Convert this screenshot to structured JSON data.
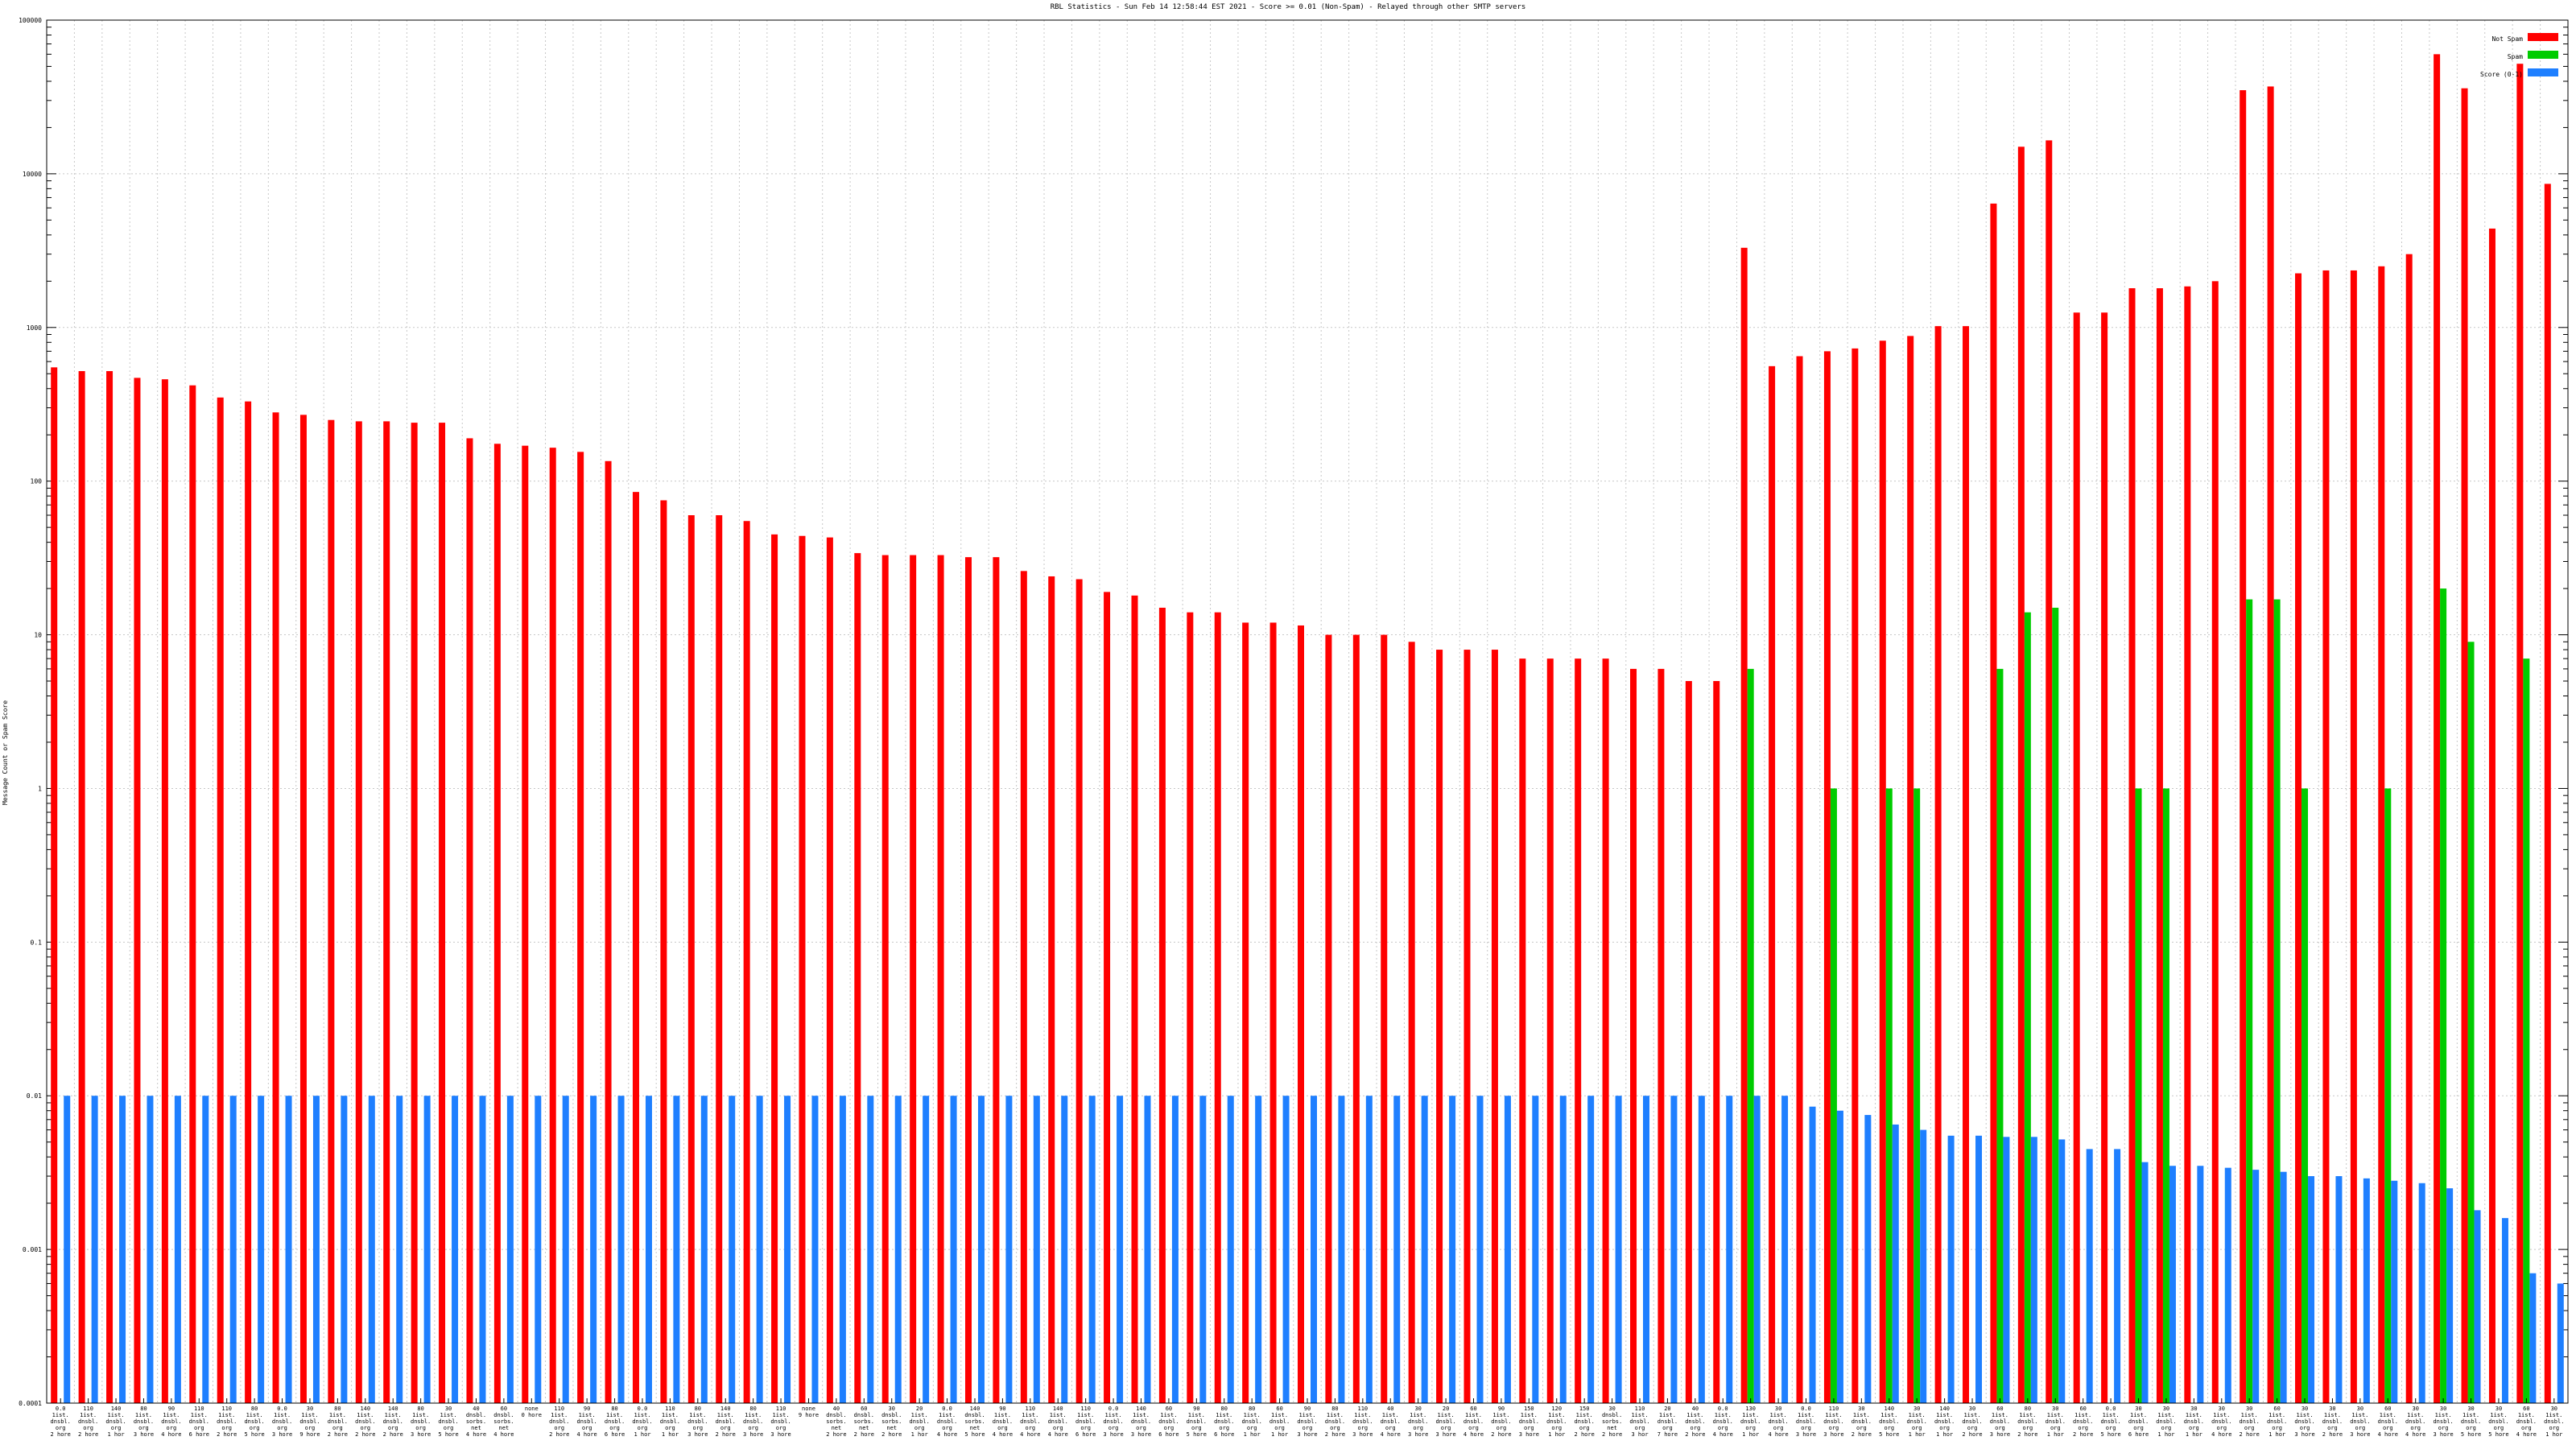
{
  "chart_data": {
    "type": "bar",
    "title": "RBL Statistics - Sun Feb 14 12:58:44 EST 2021 - Score >= 0.01 (Non-Spam) - Relayed through other SMTP servers",
    "ylabel": "Message Count or Spam Score",
    "xlabel": "",
    "yscale": "log",
    "ylim": [
      0.0001,
      100000
    ],
    "yticks": [
      "0.0001",
      "0.001",
      "0.01",
      "0.1",
      "1",
      "10",
      "100",
      "1000",
      "10000",
      "100000"
    ],
    "legend_position": "top-right",
    "grid": true,
    "series": [
      {
        "name": "Not Spam",
        "color": "#ff0000",
        "values": [
          550,
          520,
          520,
          470,
          460,
          420,
          350,
          330,
          280,
          270,
          250,
          245,
          245,
          240,
          240,
          190,
          175,
          170,
          165,
          155,
          135,
          85,
          75,
          60,
          60,
          55,
          45,
          44,
          43,
          34,
          33,
          33,
          33,
          32,
          32,
          26,
          24,
          23,
          19,
          18,
          15,
          14,
          14,
          12,
          12,
          11.5,
          10,
          10,
          10,
          9,
          8,
          8,
          8,
          7,
          7,
          7,
          7,
          6,
          6,
          5,
          5,
          3300,
          560,
          650,
          700,
          730,
          820,
          880,
          1020,
          1020,
          6400,
          15000,
          16500,
          1250,
          1250,
          1800,
          1800,
          1850,
          2000,
          35000,
          37000,
          2250,
          2350,
          2350,
          2500,
          3000,
          60000,
          36000,
          4400,
          52000,
          8600
        ]
      },
      {
        "name": "Spam",
        "color": "#00cc00",
        "values": [
          0,
          0,
          0,
          0,
          0,
          0,
          0,
          0,
          0,
          0,
          0,
          0,
          0,
          0,
          0,
          0,
          0,
          0,
          0,
          0,
          0,
          0,
          0,
          0,
          0,
          0,
          0,
          0,
          0,
          0,
          0,
          0,
          0,
          0,
          0,
          0,
          0,
          0,
          0,
          0,
          0,
          0,
          0,
          0,
          0,
          0,
          0,
          0,
          0,
          0,
          0,
          0,
          0,
          0,
          0,
          0,
          0,
          0,
          0,
          0,
          0,
          6,
          0,
          0,
          1,
          0,
          1,
          1,
          0,
          0,
          6,
          14,
          15,
          0,
          0,
          1,
          1,
          0,
          0,
          17,
          17,
          1,
          0,
          0,
          1,
          0,
          20,
          9,
          0,
          7,
          0
        ]
      },
      {
        "name": "Score (0-1)",
        "color": "#1e7fff",
        "values": [
          0.01,
          0.01,
          0.01,
          0.01,
          0.01,
          0.01,
          0.01,
          0.01,
          0.01,
          0.01,
          0.01,
          0.01,
          0.01,
          0.01,
          0.01,
          0.01,
          0.01,
          0.01,
          0.01,
          0.01,
          0.01,
          0.01,
          0.01,
          0.01,
          0.01,
          0.01,
          0.01,
          0.01,
          0.01,
          0.01,
          0.01,
          0.01,
          0.01,
          0.01,
          0.01,
          0.01,
          0.01,
          0.01,
          0.01,
          0.01,
          0.01,
          0.01,
          0.01,
          0.01,
          0.01,
          0.01,
          0.01,
          0.01,
          0.01,
          0.01,
          0.01,
          0.01,
          0.01,
          0.01,
          0.01,
          0.01,
          0.01,
          0.01,
          0.01,
          0.01,
          0.01,
          0.01,
          0.01,
          0.0085,
          0.008,
          0.0075,
          0.0065,
          0.006,
          0.0055,
          0.0055,
          0.0054,
          0.0054,
          0.0052,
          0.0045,
          0.0045,
          0.0037,
          0.0035,
          0.0035,
          0.0034,
          0.0033,
          0.0032,
          0.003,
          0.003,
          0.0029,
          0.0028,
          0.0027,
          0.0025,
          0.0018,
          0.0016,
          0.0007,
          0.0006
        ]
      }
    ],
    "categories": [
      {
        "lines": [
          "0.0",
          "1ist.",
          "dnsbl.",
          "org",
          "2 hore"
        ]
      },
      {
        "lines": [
          "110",
          "1ist.",
          "dnsbl.",
          "org",
          "2 hore"
        ]
      },
      {
        "lines": [
          "140",
          "1ist.",
          "dnsbl.",
          "org",
          "1 hor"
        ]
      },
      {
        "lines": [
          "80",
          "1ist.",
          "dnsbl.",
          "org",
          "3 hore"
        ]
      },
      {
        "lines": [
          "90",
          "1ist.",
          "dnsbl.",
          "org",
          "4 hore"
        ]
      },
      {
        "lines": [
          "110",
          "1ist.",
          "dnsbl.",
          "org",
          "6 hore"
        ]
      },
      {
        "lines": [
          "110",
          "1ist.",
          "dnsbl.",
          "org",
          "2 hore"
        ]
      },
      {
        "lines": [
          "80",
          "1ist.",
          "dnsbl.",
          "org",
          "5 hore"
        ]
      },
      {
        "lines": [
          "0.0",
          "1ist.",
          "dnsbl.",
          "org",
          "3 hore"
        ]
      },
      {
        "lines": [
          "30",
          "1ist.",
          "dnsbl.",
          "org",
          "9 hore"
        ]
      },
      {
        "lines": [
          "80",
          "1ist.",
          "dnsbl.",
          "org",
          "2 hore"
        ]
      },
      {
        "lines": [
          "140",
          "1ist.",
          "dnsbl.",
          "org",
          "2 hore"
        ]
      },
      {
        "lines": [
          "140",
          "1ist.",
          "dnsbl.",
          "org",
          "2 hore"
        ]
      },
      {
        "lines": [
          "80",
          "1ist.",
          "dnsbl.",
          "org",
          "3 hore"
        ]
      },
      {
        "lines": [
          "30",
          "1ist.",
          "dnsbl.",
          "org",
          "5 hore"
        ]
      },
      {
        "lines": [
          "40",
          "dnsbl.",
          "sorbs.",
          "net",
          "4 hore"
        ]
      },
      {
        "lines": [
          "60",
          "dnsbl.",
          "sorbs.",
          "net",
          "4 hore"
        ]
      },
      {
        "lines": [
          "none",
          "0 hore"
        ]
      },
      {
        "lines": [
          "110",
          "1ist.",
          "dnsbl.",
          "org",
          "2 hore"
        ]
      },
      {
        "lines": [
          "90",
          "1ist.",
          "dnsbl.",
          "org",
          "4 hore"
        ]
      },
      {
        "lines": [
          "80",
          "1ist.",
          "dnsbl.",
          "org",
          "6 hore"
        ]
      },
      {
        "lines": [
          "0.0",
          "1ist.",
          "dnsbl.",
          "org",
          "1 hor"
        ]
      },
      {
        "lines": [
          "110",
          "1ist.",
          "dnsbl.",
          "org",
          "1 hor"
        ]
      },
      {
        "lines": [
          "80",
          "1ist.",
          "dnsbl.",
          "org",
          "3 hore"
        ]
      },
      {
        "lines": [
          "140",
          "1ist.",
          "dnsbl.",
          "org",
          "2 hore"
        ]
      },
      {
        "lines": [
          "80",
          "1ist.",
          "dnsbl.",
          "org",
          "3 hore"
        ]
      },
      {
        "lines": [
          "110",
          "1ist.",
          "dnsbl.",
          "org",
          "3 hore"
        ]
      },
      {
        "lines": [
          "none",
          "9 hore"
        ]
      },
      {
        "lines": [
          "40",
          "dnsbl.",
          "sorbs.",
          "net",
          "2 hore"
        ]
      },
      {
        "lines": [
          "60",
          "dnsbl.",
          "sorbs.",
          "net",
          "2 hore"
        ]
      },
      {
        "lines": [
          "30",
          "dnsbl.",
          "sorbs.",
          "net",
          "2 hore"
        ]
      },
      {
        "lines": [
          "20",
          "1ist.",
          "dnsbl.",
          "org",
          "1 hor"
        ]
      },
      {
        "lines": [
          "0.0",
          "1ist.",
          "dnsbl.",
          "org",
          "4 hore"
        ]
      },
      {
        "lines": [
          "140",
          "dnsbl.",
          "sorbs.",
          "net",
          "5 hore"
        ]
      },
      {
        "lines": [
          "90",
          "1ist.",
          "dnsbl.",
          "org",
          "4 hore"
        ]
      },
      {
        "lines": [
          "110",
          "1ist.",
          "dnsbl.",
          "org",
          "4 hore"
        ]
      },
      {
        "lines": [
          "140",
          "1ist.",
          "dnsbl.",
          "org",
          "4 hore"
        ]
      },
      {
        "lines": [
          "110",
          "1ist.",
          "dnsbl.",
          "org",
          "6 hore"
        ]
      },
      {
        "lines": [
          "0.0",
          "1ist.",
          "dnsbl.",
          "org",
          "3 hore"
        ]
      },
      {
        "lines": [
          "140",
          "1ist.",
          "dnsbl.",
          "org",
          "3 hore"
        ]
      },
      {
        "lines": [
          "60",
          "1ist.",
          "dnsbl.",
          "org",
          "6 hore"
        ]
      },
      {
        "lines": [
          "90",
          "1ist.",
          "dnsbl.",
          "org",
          "5 hore"
        ]
      },
      {
        "lines": [
          "80",
          "1ist.",
          "dnsbl.",
          "org",
          "6 hore"
        ]
      },
      {
        "lines": [
          "80",
          "1ist.",
          "dnsbl.",
          "org",
          "1 hor"
        ]
      },
      {
        "lines": [
          "60",
          "1ist.",
          "dnsbl.",
          "org",
          "1 hor"
        ]
      },
      {
        "lines": [
          "90",
          "1ist.",
          "dnsbl.",
          "org",
          "3 hore"
        ]
      },
      {
        "lines": [
          "80",
          "1ist.",
          "dnsbl.",
          "org",
          "2 hore"
        ]
      },
      {
        "lines": [
          "110",
          "1ist.",
          "dnsbl.",
          "org",
          "3 hore"
        ]
      },
      {
        "lines": [
          "40",
          "1ist.",
          "dnsbl.",
          "org",
          "4 hore"
        ]
      },
      {
        "lines": [
          "30",
          "1ist.",
          "dnsbl.",
          "org",
          "3 hore"
        ]
      },
      {
        "lines": [
          "20",
          "1ist.",
          "dnsbl.",
          "org",
          "3 hore"
        ]
      },
      {
        "lines": [
          "60",
          "1ist.",
          "dnsbl.",
          "org",
          "4 hore"
        ]
      },
      {
        "lines": [
          "90",
          "1ist.",
          "dnsbl.",
          "org",
          "2 hore"
        ]
      },
      {
        "lines": [
          "150",
          "1ist.",
          "dnsbl.",
          "org",
          "3 hore"
        ]
      },
      {
        "lines": [
          "120",
          "1ist.",
          "dnsbl.",
          "org",
          "1 hor"
        ]
      },
      {
        "lines": [
          "150",
          "1ist.",
          "dnsbl.",
          "org",
          "2 hore"
        ]
      },
      {
        "lines": [
          "30",
          "dnsbl.",
          "sorbs.",
          "net",
          "2 hore"
        ]
      },
      {
        "lines": [
          "110",
          "1ist.",
          "dnsbl.",
          "org",
          "3 hor"
        ]
      },
      {
        "lines": [
          "20",
          "1ist.",
          "dnsbl.",
          "org",
          "7 hore"
        ]
      },
      {
        "lines": [
          "40",
          "1ist.",
          "dnsbl.",
          "org",
          "2 hore"
        ]
      },
      {
        "lines": [
          "0.0",
          "1ist.",
          "dnsbl.",
          "org",
          "4 hore"
        ]
      },
      {
        "lines": [
          "130",
          "1ist.",
          "dnsbl.",
          "org",
          "1 hor"
        ]
      },
      {
        "lines": [
          "30",
          "1ist.",
          "dnsbl.",
          "org",
          "4 hore"
        ]
      },
      {
        "lines": [
          "0.0",
          "1ist.",
          "dnsbl.",
          "org",
          "3 hore"
        ]
      },
      {
        "lines": [
          "110",
          "1ist.",
          "dnsbl.",
          "org",
          "3 hore"
        ]
      },
      {
        "lines": [
          "30",
          "1ist.",
          "dnsbl.",
          "org",
          "2 hore"
        ]
      },
      {
        "lines": [
          "140",
          "1ist.",
          "dnsbl.",
          "org",
          "5 hore"
        ]
      },
      {
        "lines": [
          "30",
          "1ist.",
          "dnsbl.",
          "org",
          "1 hor"
        ]
      },
      {
        "lines": [
          "140",
          "1ist.",
          "dnsbl.",
          "org",
          "1 hor"
        ]
      },
      {
        "lines": [
          "30",
          "1ist.",
          "dnsbl.",
          "org",
          "2 hore"
        ]
      },
      {
        "lines": [
          "60",
          "1ist.",
          "dnsbl.",
          "org",
          "3 hore"
        ]
      },
      {
        "lines": [
          "80",
          "1ist.",
          "dnsbl.",
          "org",
          "2 hore"
        ]
      },
      {
        "lines": [
          "30",
          "1ist.",
          "dnsbl.",
          "org",
          "1 hor"
        ]
      },
      {
        "lines": [
          "60",
          "1ist.",
          "dnsbl.",
          "org",
          "2 hore"
        ]
      },
      {
        "lines": [
          "0.0",
          "1ist.",
          "dnsbl.",
          "org",
          "5 hore"
        ]
      },
      {
        "lines": [
          "30",
          "1ist.",
          "dnsbl.",
          "org",
          "6 hore"
        ]
      },
      {
        "lines": [
          "30",
          "1ist.",
          "dnsbl.",
          "org",
          "1 hor"
        ]
      },
      {
        "lines": [
          "30",
          "1ist.",
          "dnsbl.",
          "org",
          "1 hor"
        ]
      },
      {
        "lines": [
          "30",
          "1ist.",
          "dnsbl.",
          "org",
          "4 hore"
        ]
      },
      {
        "lines": [
          "30",
          "1ist.",
          "dnsbl.",
          "org",
          "2 hore"
        ]
      },
      {
        "lines": [
          "60",
          "1ist.",
          "dnsbl.",
          "org",
          "1 hor"
        ]
      },
      {
        "lines": [
          "30",
          "1ist.",
          "dnsbl.",
          "org",
          "3 hore"
        ]
      },
      {
        "lines": [
          "30",
          "1ist.",
          "dnsbl.",
          "org",
          "2 hore"
        ]
      },
      {
        "lines": [
          "30",
          "1ist.",
          "dnsbl.",
          "org",
          "3 hore"
        ]
      },
      {
        "lines": [
          "60",
          "1ist.",
          "dnsbl.",
          "org",
          "4 hore"
        ]
      },
      {
        "lines": [
          "30",
          "1ist.",
          "dnsbl.",
          "org",
          "4 hore"
        ]
      },
      {
        "lines": [
          "30",
          "1ist.",
          "dnsbl.",
          "org",
          "3 hore"
        ]
      },
      {
        "lines": [
          "30",
          "1ist.",
          "dnsbl.",
          "org",
          "5 hore"
        ]
      },
      {
        "lines": [
          "30",
          "1ist.",
          "dnsbl.",
          "org",
          "5 hore"
        ]
      },
      {
        "lines": [
          "60",
          "1ist.",
          "dnsbl.",
          "org",
          "4 hore"
        ]
      },
      {
        "lines": [
          "30",
          "1ist.",
          "dnsbl.",
          "org",
          "1 hor"
        ]
      }
    ]
  }
}
